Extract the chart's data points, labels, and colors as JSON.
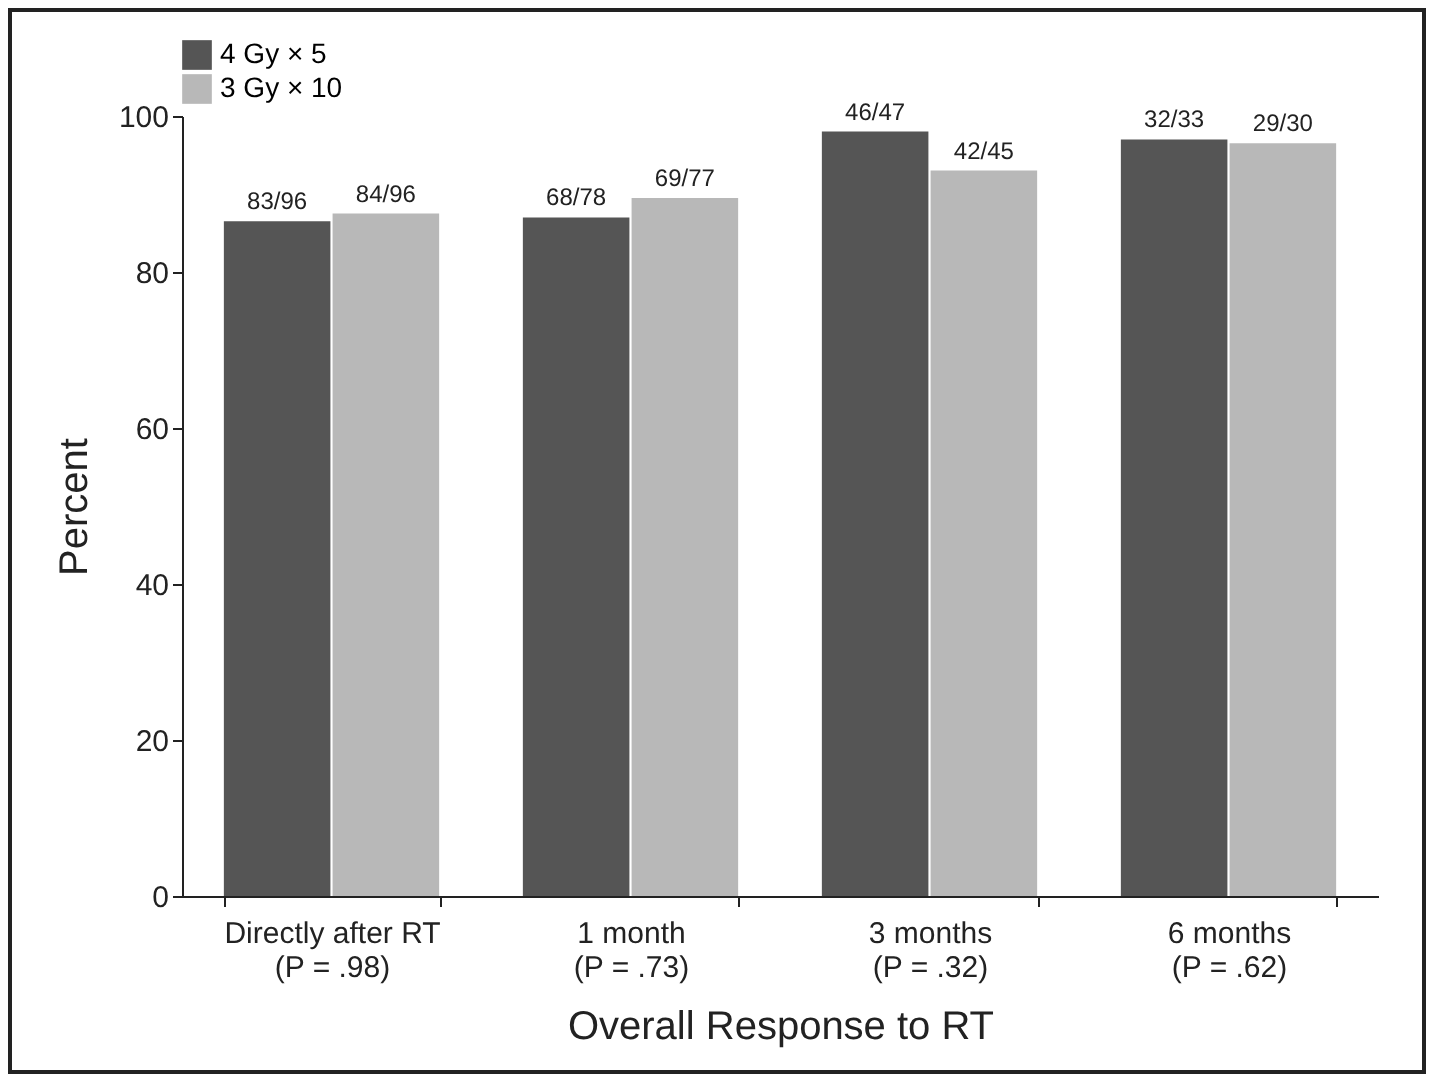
{
  "chart_data": {
    "type": "bar",
    "xlabel": "Overall Response to RT",
    "ylabel": "Percent",
    "categories": [
      "Directly after RT\n(P = .98)",
      "1 month\n(P = .73)",
      "3 months\n(P = .32)",
      "6 months\n(P = .62)"
    ],
    "series": [
      {
        "name": "4 Gy × 5",
        "color": "#555555",
        "values": [
          86.5,
          87,
          98,
          97
        ],
        "value_labels": [
          "83/96",
          "68/78",
          "46/47",
          "32/33"
        ]
      },
      {
        "name": "3 Gy × 10",
        "color": "#b8b8b8",
        "values": [
          87.5,
          89.5,
          93,
          96.5
        ],
        "value_labels": [
          "84/96",
          "69/77",
          "42/45",
          "29/30"
        ]
      }
    ],
    "ylim": [
      0,
      100
    ],
    "yticks": [
      0,
      20,
      40,
      60,
      80,
      100
    ],
    "legend": "top left"
  }
}
